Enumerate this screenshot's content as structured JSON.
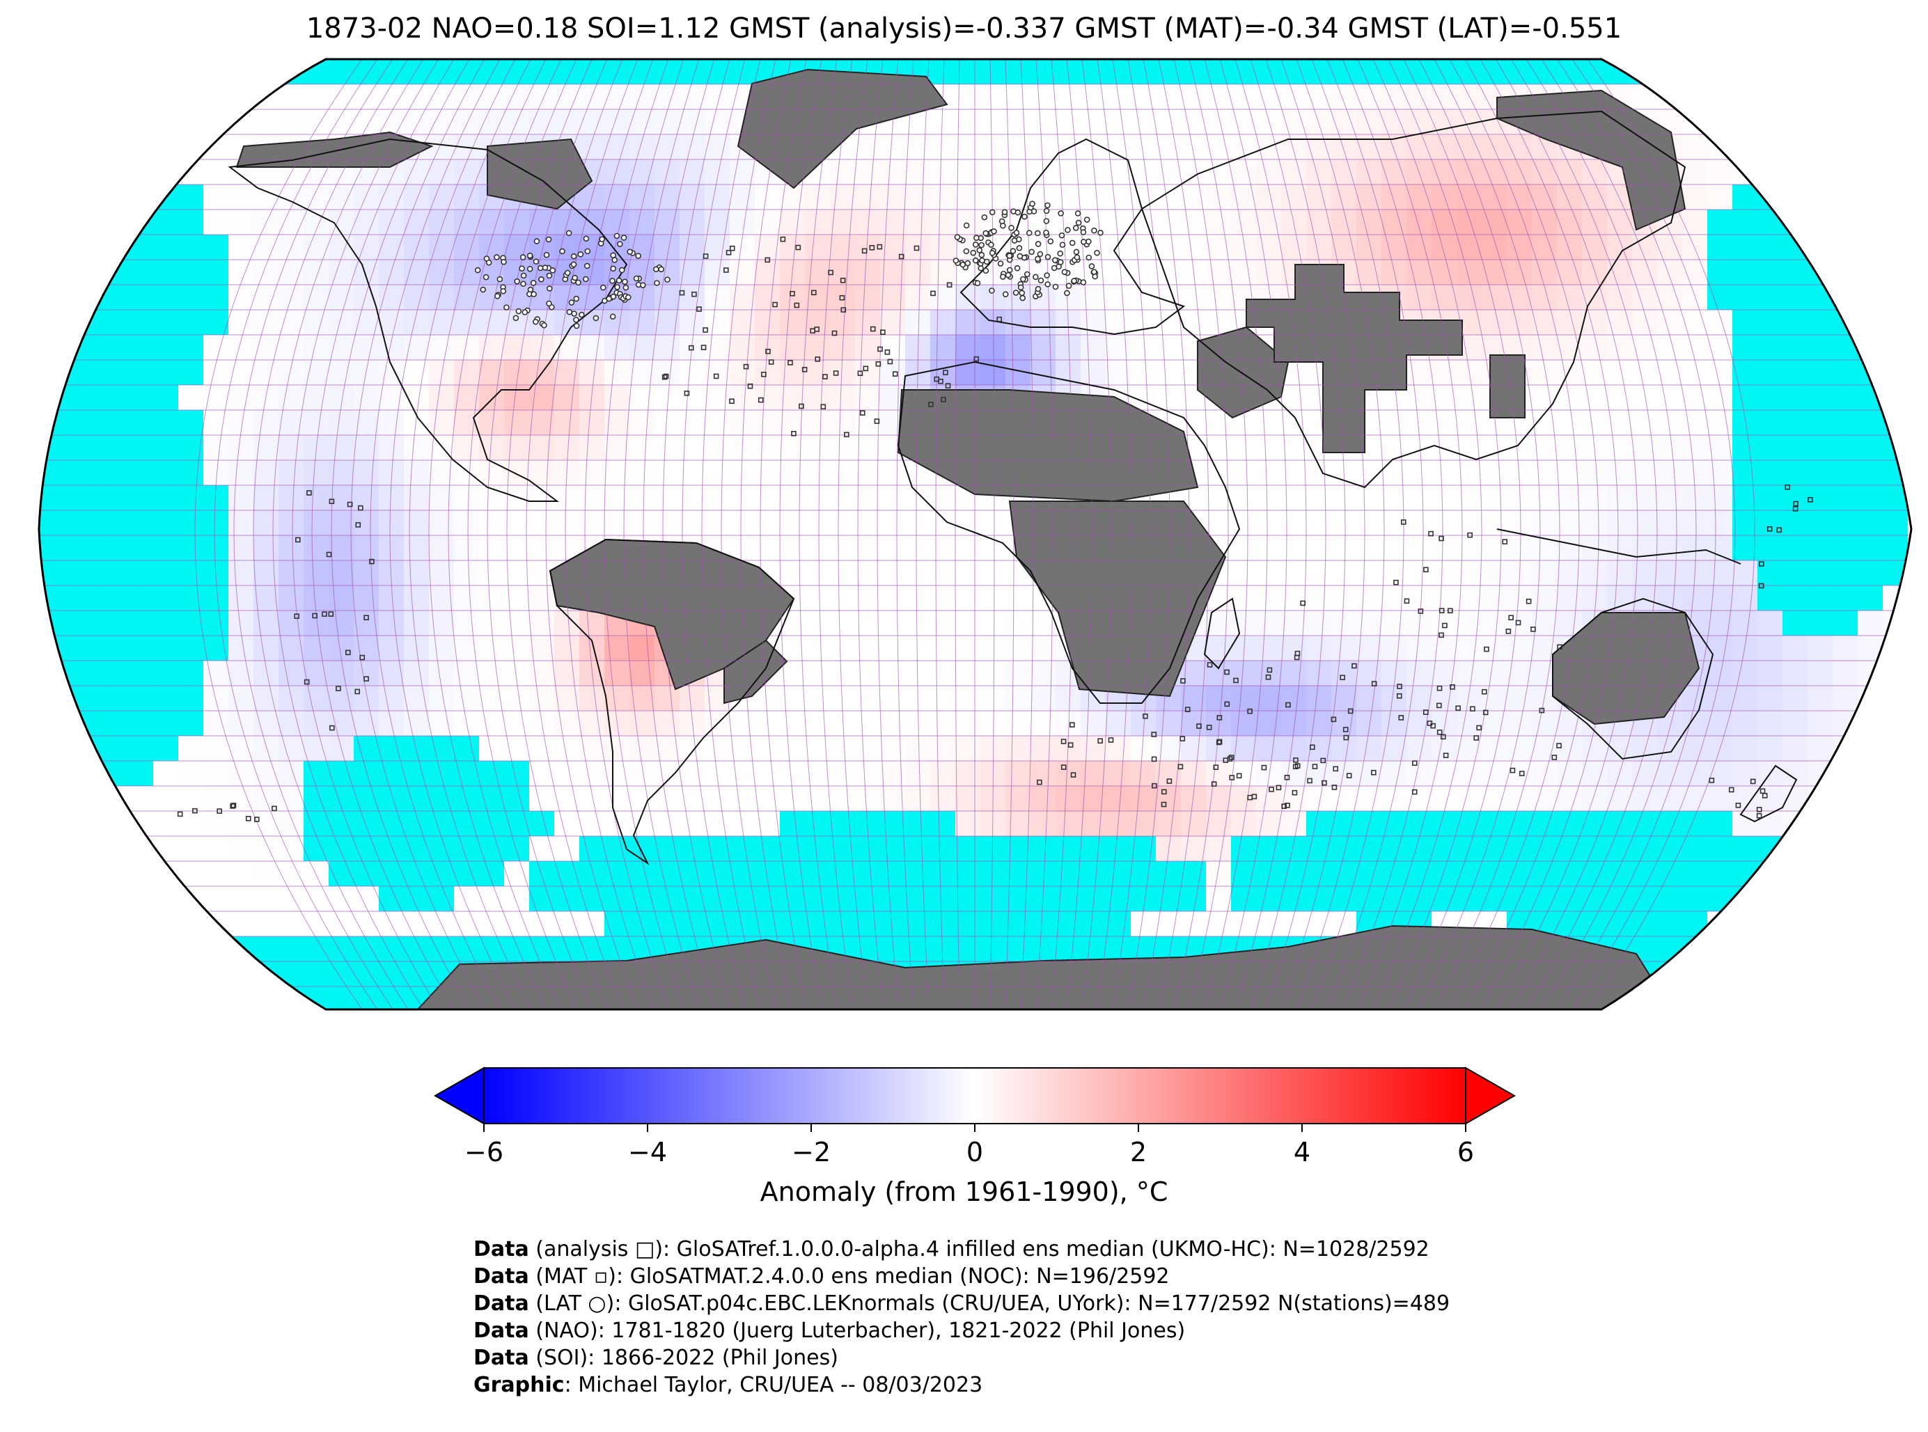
{
  "title": "1873-02 NAO=0.18 SOI=1.12 GMST (analysis)=-0.337 GMST (MAT)=-0.34 GMST (LAT)=-0.551",
  "colors": {
    "ocean": "#00f5f5",
    "land_no_data": "#737373",
    "grid_line": "#a050b0",
    "cold": "#0000ff",
    "neutral": "#ffffff",
    "warm": "#ff0000"
  },
  "colorbar": {
    "ticks": [
      "−6",
      "−4",
      "−2",
      "0",
      "2",
      "4",
      "6"
    ],
    "label": "Anomaly (from 1961-1990), °C"
  },
  "credits": [
    {
      "bold": "Data",
      "text": " (analysis □): GloSATref.1.0.0.0-alpha.4 infilled ens median (UKMO-HC): N=1028/2592"
    },
    {
      "bold": "Data",
      "text": " (MAT ▫): GloSATMAT.2.4.0.0 ens median (NOC): N=196/2592"
    },
    {
      "bold": "Data",
      "text": " (LAT ○): GloSAT.p04c.EBC.LEKnormals (CRU/UEA, UYork): N=177/2592 N(stations)=489"
    },
    {
      "bold": "Data",
      "text": " (NAO): 1781-1820 (Juerg Luterbacher), 1821-2022 (Phil Jones)"
    },
    {
      "bold": "Data",
      "text": " (SOI): 1866-2022 (Phil Jones)"
    },
    {
      "bold": "Graphic",
      "text": ": Michael Taylor, CRU/UEA -- 08/03/2023"
    }
  ]
}
